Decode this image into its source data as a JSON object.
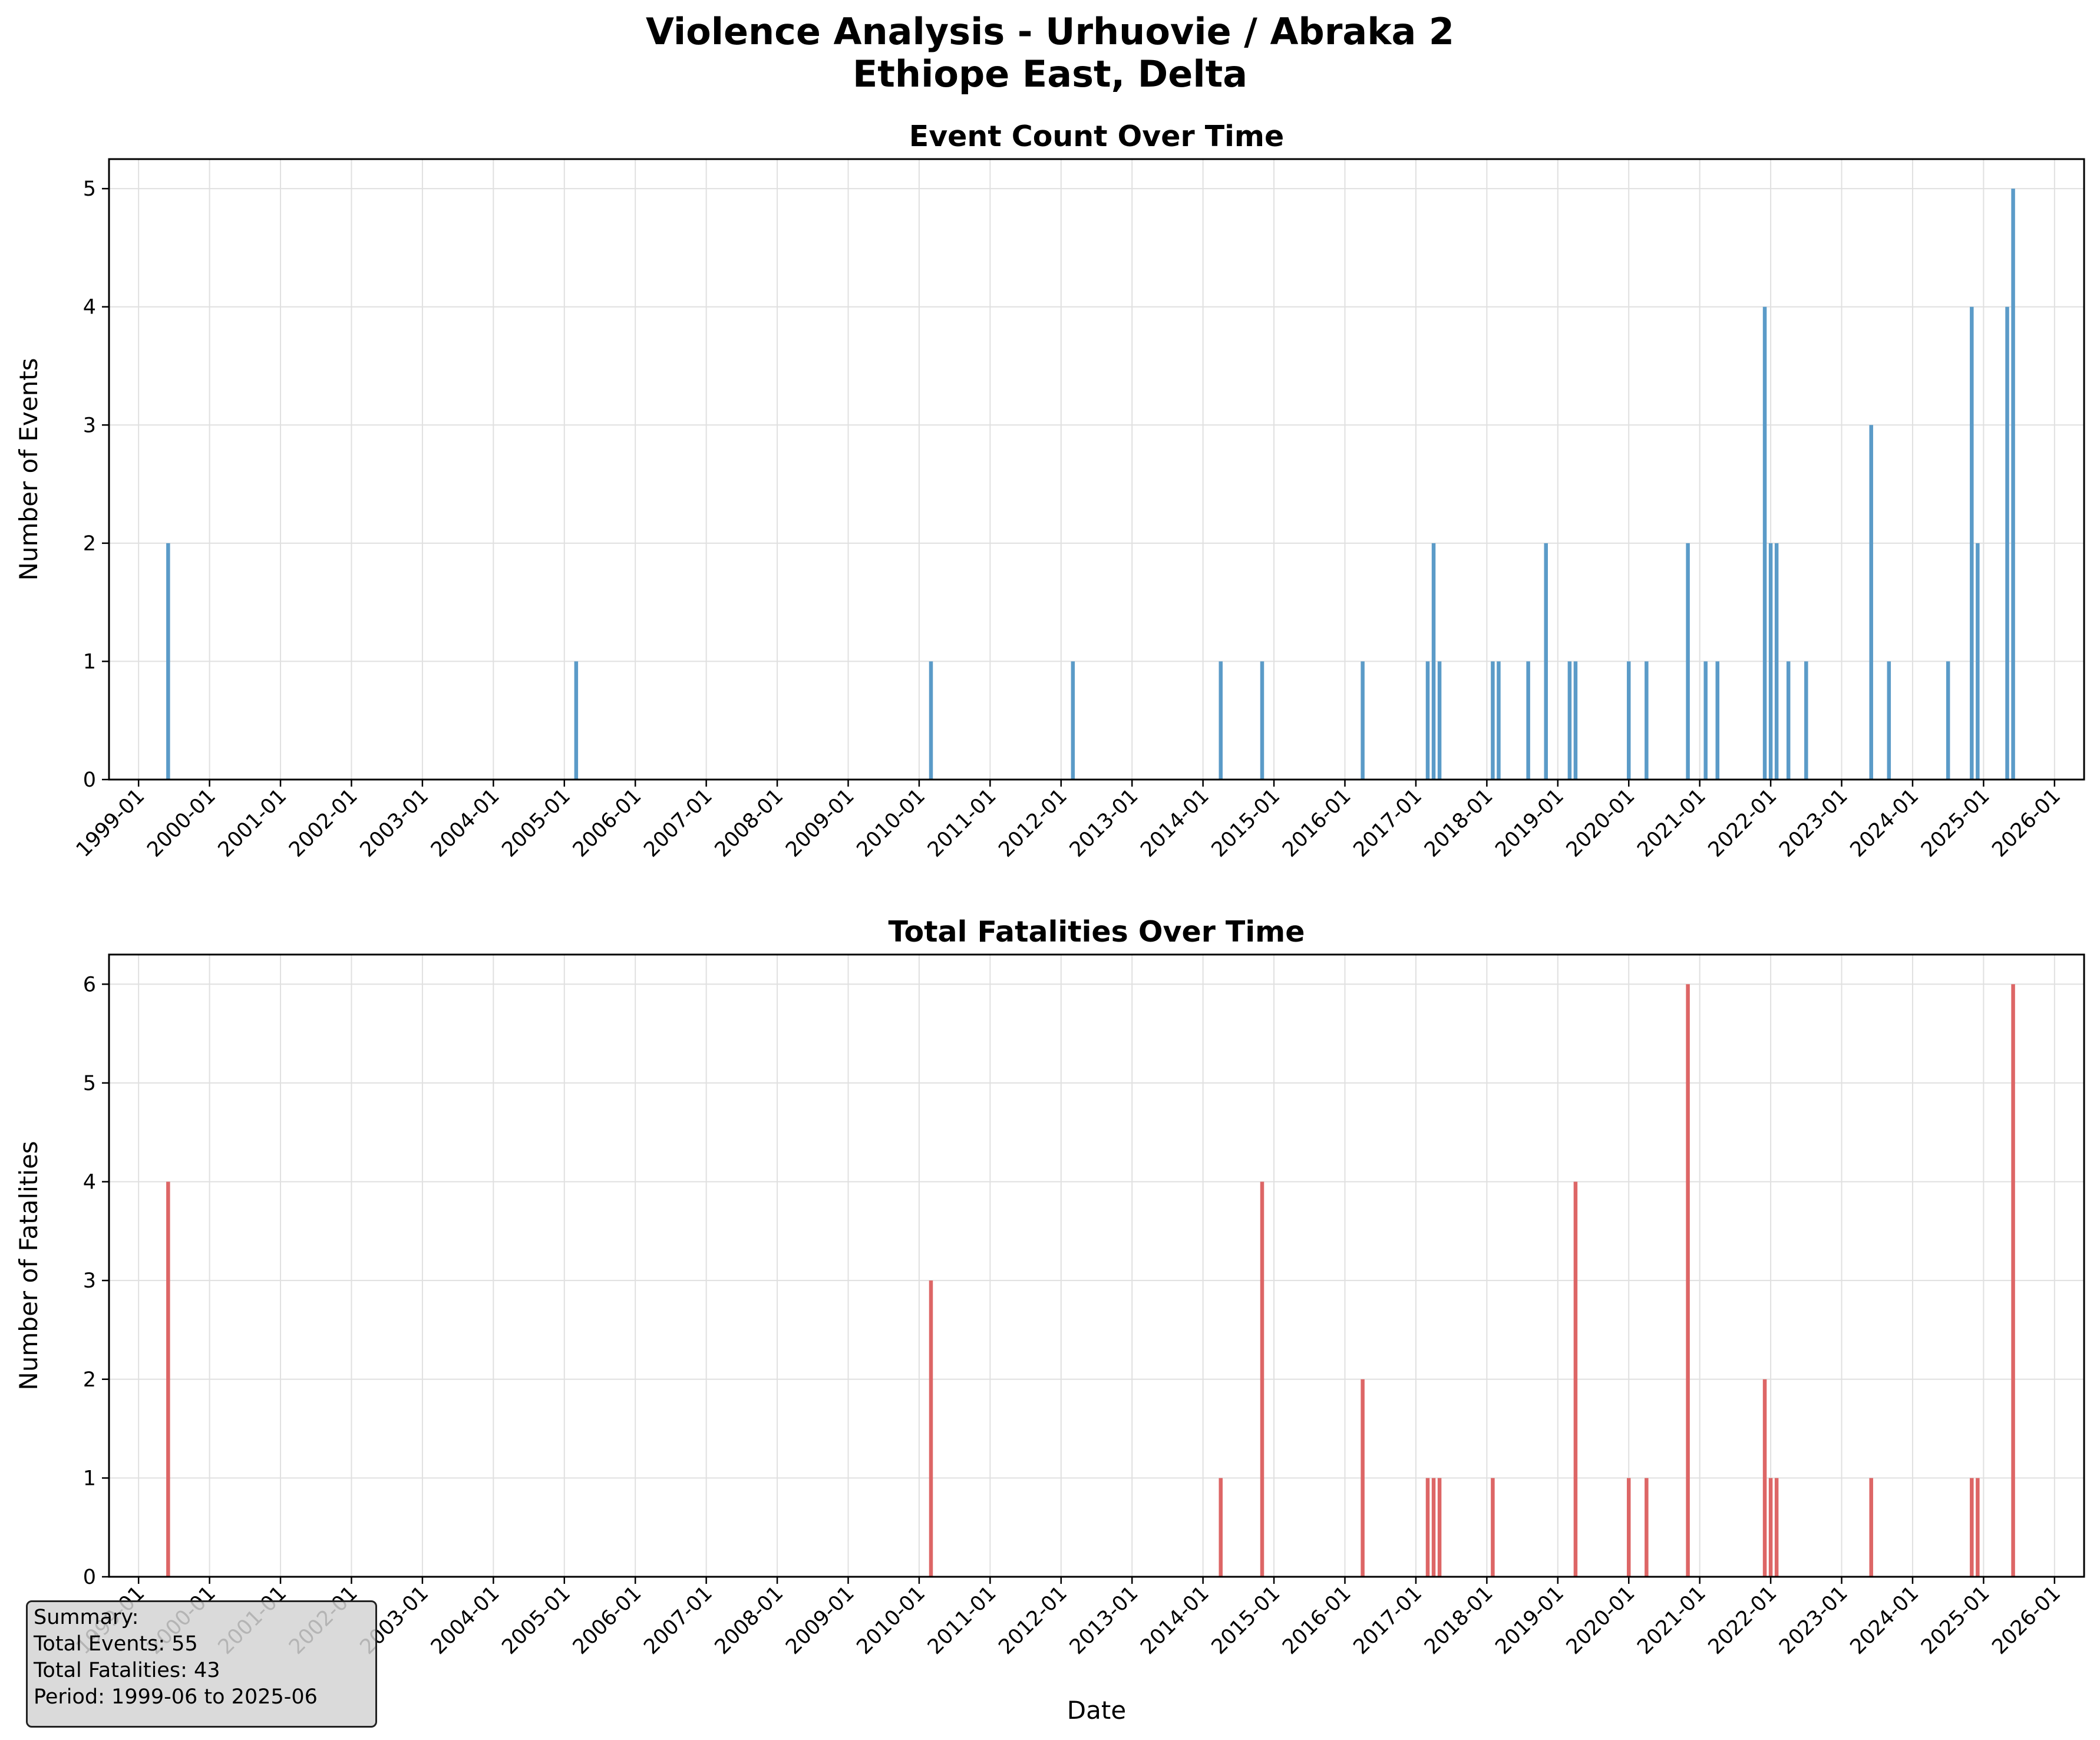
{
  "figure": {
    "title_line1": "Violence Analysis - Urhuovie / Abraka  2",
    "title_line2": "Ethiope East, Delta"
  },
  "summary": {
    "heading": "Summary:",
    "total_events": "Total Events: 55",
    "total_fatalities": "Total Fatalities: 43",
    "period": "Period: 1999-06 to 2025-06"
  },
  "colors": {
    "events_bar": "#5b9bc8",
    "fatalities_bar": "#dd6666",
    "grid": "#e0e0e0"
  },
  "chart_data": [
    {
      "type": "bar",
      "title": "Event Count Over Time",
      "xlabel": "",
      "ylabel": "Number of Events",
      "ylim": [
        0,
        5.25
      ],
      "yticks": [
        0,
        1,
        2,
        3,
        4,
        5
      ],
      "xlim": [
        "1998-08",
        "2026-06"
      ],
      "xticks": [
        "1999-01",
        "2000-01",
        "2001-01",
        "2002-01",
        "2003-01",
        "2004-01",
        "2005-01",
        "2006-01",
        "2007-01",
        "2008-01",
        "2009-01",
        "2010-01",
        "2011-01",
        "2012-01",
        "2013-01",
        "2014-01",
        "2015-01",
        "2016-01",
        "2017-01",
        "2018-01",
        "2019-01",
        "2020-01",
        "2021-01",
        "2022-01",
        "2023-01",
        "2024-01",
        "2025-01",
        "2026-01"
      ],
      "grid": true,
      "x": [
        "1999-06",
        "2005-03",
        "2010-03",
        "2012-03",
        "2014-04",
        "2014-11",
        "2016-04",
        "2017-03",
        "2017-04",
        "2017-05",
        "2018-02",
        "2018-03",
        "2018-08",
        "2018-11",
        "2019-03",
        "2019-04",
        "2020-01",
        "2020-04",
        "2020-11",
        "2021-02",
        "2021-04",
        "2021-12",
        "2022-01",
        "2022-02",
        "2022-04",
        "2022-07",
        "2023-06",
        "2023-09",
        "2024-07",
        "2024-11",
        "2024-12",
        "2025-05",
        "2025-06"
      ],
      "values": [
        2,
        1,
        1,
        1,
        1,
        1,
        1,
        1,
        2,
        1,
        1,
        1,
        1,
        2,
        1,
        1,
        1,
        1,
        2,
        1,
        1,
        4,
        2,
        2,
        1,
        1,
        3,
        1,
        1,
        4,
        2,
        4,
        5
      ]
    },
    {
      "type": "bar",
      "title": "Total Fatalities Over Time",
      "xlabel": "Date",
      "ylabel": "Number of Fatalities",
      "ylim": [
        0,
        6.3
      ],
      "yticks": [
        0,
        1,
        2,
        3,
        4,
        5,
        6
      ],
      "xlim": [
        "1998-08",
        "2026-06"
      ],
      "xticks": [
        "1999-01",
        "2000-01",
        "2001-01",
        "2002-01",
        "2003-01",
        "2004-01",
        "2005-01",
        "2006-01",
        "2007-01",
        "2008-01",
        "2009-01",
        "2010-01",
        "2011-01",
        "2012-01",
        "2013-01",
        "2014-01",
        "2015-01",
        "2016-01",
        "2017-01",
        "2018-01",
        "2019-01",
        "2020-01",
        "2021-01",
        "2022-01",
        "2023-01",
        "2024-01",
        "2025-01",
        "2026-01"
      ],
      "grid": true,
      "x": [
        "1999-06",
        "2010-03",
        "2014-04",
        "2014-11",
        "2016-04",
        "2017-03",
        "2017-04",
        "2017-05",
        "2018-02",
        "2019-04",
        "2020-01",
        "2020-04",
        "2020-11",
        "2021-12",
        "2022-01",
        "2022-02",
        "2023-06",
        "2024-11",
        "2024-12",
        "2025-06"
      ],
      "values": [
        4,
        3,
        1,
        4,
        2,
        1,
        1,
        1,
        1,
        4,
        1,
        1,
        6,
        2,
        1,
        1,
        1,
        1,
        1,
        6
      ]
    }
  ]
}
